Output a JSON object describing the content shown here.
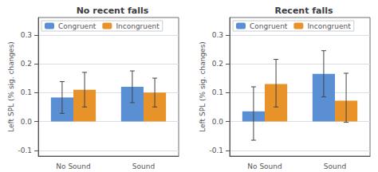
{
  "chart_data": [
    {
      "type": "bar",
      "title": "No recent falls",
      "categories": [
        "No Sound",
        "Sound"
      ],
      "series": [
        {
          "name": "Congruent",
          "color": "#5b8fd4",
          "values": [
            0.083,
            0.12
          ],
          "error_up": [
            0.055,
            0.055
          ],
          "error_down": [
            0.055,
            0.055
          ]
        },
        {
          "name": "Incongruent",
          "color": "#e8922a",
          "values": [
            0.11,
            0.1
          ],
          "error_up": [
            0.06,
            0.05
          ],
          "error_down": [
            0.06,
            0.05
          ]
        }
      ],
      "ylabel": "Left SPL (% sig. changes)",
      "ylim": [
        -0.12,
        0.36
      ],
      "yticks": [
        -0.1,
        {
          "value": 0,
          "label": "0.0"
        },
        0.1,
        0.2,
        0.3
      ],
      "grid": true,
      "legend": "upper left"
    },
    {
      "type": "bar",
      "title": "Recent falls",
      "categories": [
        "No Sound",
        "Sound"
      ],
      "series": [
        {
          "name": "Congruent",
          "color": "#5b8fd4",
          "values": [
            0.035,
            0.165
          ],
          "error_up": [
            0.085,
            0.08
          ],
          "error_down": [
            0.1,
            0.08
          ]
        },
        {
          "name": "Incongruent",
          "color": "#e8922a",
          "values": [
            0.13,
            0.072
          ],
          "error_up": [
            0.085,
            0.095
          ],
          "error_down": [
            0.08,
            0.075
          ]
        }
      ],
      "ylabel": "Left SPL (% sig. changes)",
      "ylim": [
        -0.12,
        0.36
      ],
      "yticks": [
        -0.1,
        {
          "value": 0,
          "label": "0.0"
        },
        0.1,
        0.2,
        0.3
      ],
      "grid": true,
      "legend": "upper left"
    }
  ]
}
